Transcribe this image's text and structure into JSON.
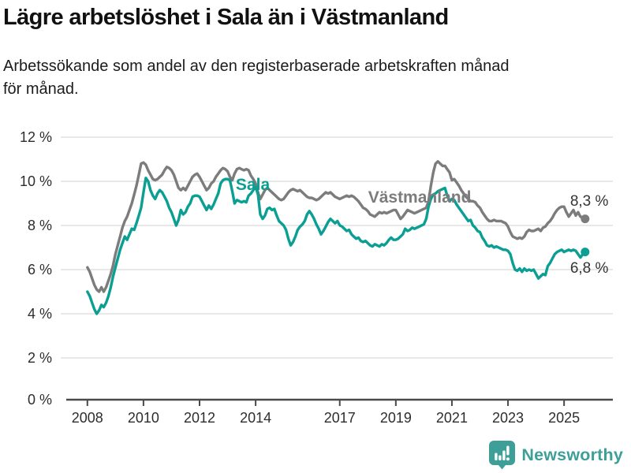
{
  "header": {
    "title": "Lägre arbetslöshet i Sala än i Västmanland",
    "subtitle_lines": [
      "Arbetssökande som andel av den registerbaserade arbetskraften månad",
      "för månad."
    ]
  },
  "chart_data": {
    "type": "line",
    "x_start": "2008-01",
    "x_frequency": "monthly",
    "x_ticks": [
      2008,
      2010,
      2012,
      2014,
      2017,
      2019,
      2021,
      2023,
      2025
    ],
    "y_ticks": [
      0,
      2,
      4,
      6,
      8,
      10,
      12
    ],
    "y_tick_suffix": " %",
    "ylim": [
      0,
      12
    ],
    "grid": "horizontal",
    "legend_position": "inline-labels",
    "style": {
      "grid_color": "#dadada",
      "axis_color": "#4a4a4a",
      "tick_text_color": "#2d2d2d",
      "value_label_color": "#333333"
    },
    "series": [
      {
        "id": "vastmanland",
        "name": "Västmanland",
        "color": "#7c7c7c",
        "end_label": "8,3 %",
        "latest_value": 8.3,
        "end_label_dy": -22,
        "label_pos": {
          "year": 2019.85,
          "value": 9.25
        },
        "values": [
          6.1,
          5.9,
          5.6,
          5.3,
          5.1,
          5.0,
          5.2,
          5.0,
          5.2,
          5.5,
          5.8,
          6.2,
          6.7,
          7.1,
          7.5,
          7.9,
          8.2,
          8.4,
          8.7,
          9.0,
          9.4,
          9.8,
          10.3,
          10.8,
          10.85,
          10.75,
          10.5,
          10.3,
          10.1,
          10.05,
          10.1,
          10.2,
          10.3,
          10.5,
          10.65,
          10.6,
          10.5,
          10.3,
          10.0,
          9.7,
          9.6,
          9.7,
          9.6,
          9.8,
          10.0,
          10.2,
          10.3,
          10.35,
          10.2,
          10.0,
          9.8,
          9.6,
          9.7,
          9.9,
          10.0,
          10.2,
          10.35,
          10.5,
          10.6,
          10.55,
          10.45,
          10.2,
          10.05,
          10.35,
          10.55,
          10.6,
          10.55,
          10.5,
          10.55,
          10.5,
          10.25,
          10.1,
          9.9,
          9.5,
          9.2,
          9.4,
          9.6,
          9.7,
          9.6,
          9.5,
          9.4,
          9.3,
          9.2,
          9.15,
          9.2,
          9.35,
          9.5,
          9.6,
          9.65,
          9.6,
          9.55,
          9.6,
          9.5,
          9.4,
          9.3,
          9.25,
          9.25,
          9.2,
          9.15,
          9.2,
          9.3,
          9.4,
          9.5,
          9.45,
          9.5,
          9.4,
          9.3,
          9.25,
          9.2,
          9.25,
          9.3,
          9.35,
          9.3,
          9.35,
          9.3,
          9.2,
          9.1,
          8.95,
          8.8,
          8.75,
          8.65,
          8.5,
          8.45,
          8.4,
          8.5,
          8.6,
          8.55,
          8.6,
          8.55,
          8.6,
          8.65,
          8.7,
          8.7,
          8.5,
          8.3,
          8.4,
          8.55,
          8.7,
          8.65,
          8.6,
          8.55,
          8.6,
          8.65,
          8.7,
          8.75,
          8.8,
          9.1,
          9.8,
          10.4,
          10.8,
          10.9,
          10.8,
          10.7,
          10.7,
          10.55,
          10.4,
          10.05,
          10.1,
          9.95,
          9.8,
          9.6,
          9.45,
          9.3,
          9.2,
          9.1,
          9.1,
          9.05,
          8.9,
          8.8,
          8.6,
          8.45,
          8.3,
          8.2,
          8.2,
          8.25,
          8.2,
          8.2,
          8.2,
          8.15,
          8.1,
          7.95,
          7.7,
          7.5,
          7.45,
          7.4,
          7.45,
          7.4,
          7.5,
          7.7,
          7.8,
          7.75,
          7.75,
          7.8,
          7.85,
          7.75,
          7.9,
          7.95,
          8.1,
          8.2,
          8.35,
          8.55,
          8.7,
          8.8,
          8.85,
          8.85,
          8.6,
          8.4,
          8.55,
          8.7,
          8.45,
          8.6,
          8.4,
          8.35,
          8.3
        ]
      },
      {
        "id": "sala",
        "name": "Sala",
        "color": "#0b9f94",
        "end_label": "6,8 %",
        "latest_value": 6.8,
        "end_label_dy": 21,
        "label_pos": {
          "year": 2013.9,
          "value": 9.82
        },
        "values": [
          5.0,
          4.8,
          4.5,
          4.2,
          4.0,
          4.15,
          4.4,
          4.3,
          4.5,
          4.8,
          5.2,
          5.7,
          6.1,
          6.5,
          6.9,
          7.2,
          7.5,
          7.35,
          7.6,
          7.85,
          7.8,
          8.1,
          8.45,
          8.8,
          9.5,
          10.15,
          10.0,
          9.6,
          9.35,
          9.2,
          9.45,
          9.6,
          9.5,
          9.3,
          9.1,
          8.8,
          8.6,
          8.3,
          8.0,
          8.25,
          8.7,
          8.5,
          8.6,
          8.85,
          9.0,
          9.3,
          9.35,
          9.35,
          9.3,
          9.1,
          8.9,
          8.7,
          8.9,
          8.75,
          8.95,
          9.2,
          9.45,
          9.9,
          10.05,
          10.1,
          10.1,
          10.05,
          9.55,
          9.0,
          9.15,
          9.1,
          9.05,
          9.1,
          9.05,
          9.35,
          9.45,
          9.6,
          9.75,
          9.4,
          8.5,
          8.3,
          8.45,
          8.75,
          8.8,
          8.7,
          8.75,
          8.45,
          8.2,
          8.1,
          8.0,
          7.8,
          7.4,
          7.1,
          7.25,
          7.5,
          7.8,
          7.95,
          8.05,
          8.2,
          8.5,
          8.65,
          8.5,
          8.3,
          8.05,
          7.85,
          7.6,
          7.75,
          7.95,
          8.15,
          8.3,
          8.2,
          8.1,
          8.2,
          8.0,
          7.95,
          7.85,
          7.75,
          7.8,
          7.6,
          7.5,
          7.4,
          7.45,
          7.3,
          7.25,
          7.3,
          7.2,
          7.1,
          7.05,
          7.15,
          7.1,
          7.05,
          7.15,
          7.1,
          7.2,
          7.35,
          7.45,
          7.35,
          7.35,
          7.4,
          7.5,
          7.6,
          7.85,
          7.75,
          7.8,
          7.9,
          7.85,
          7.9,
          7.95,
          8.0,
          8.05,
          8.3,
          8.85,
          9.2,
          9.4,
          9.45,
          9.55,
          9.6,
          9.65,
          9.7,
          9.35,
          9.1,
          9.2,
          9.15,
          8.95,
          8.8,
          8.65,
          8.5,
          8.35,
          8.2,
          8.25,
          8.0,
          7.9,
          7.75,
          7.7,
          7.45,
          7.3,
          7.1,
          7.05,
          7.1,
          7.0,
          7.05,
          7.0,
          6.95,
          6.9,
          6.9,
          6.85,
          6.7,
          6.3,
          6.0,
          5.95,
          6.05,
          5.9,
          6.05,
          5.95,
          6.0,
          5.95,
          6.0,
          5.8,
          5.6,
          5.7,
          5.8,
          5.75,
          6.15,
          6.3,
          6.5,
          6.7,
          6.8,
          6.85,
          6.9,
          6.8,
          6.85,
          6.9,
          6.85,
          6.9,
          6.85,
          6.7,
          6.55,
          6.7,
          6.8
        ]
      }
    ]
  },
  "footer": {
    "brand": "Newsworthy",
    "brand_color": "#3d9f98",
    "logo_icon": "bar-chart-speech-bubble"
  }
}
